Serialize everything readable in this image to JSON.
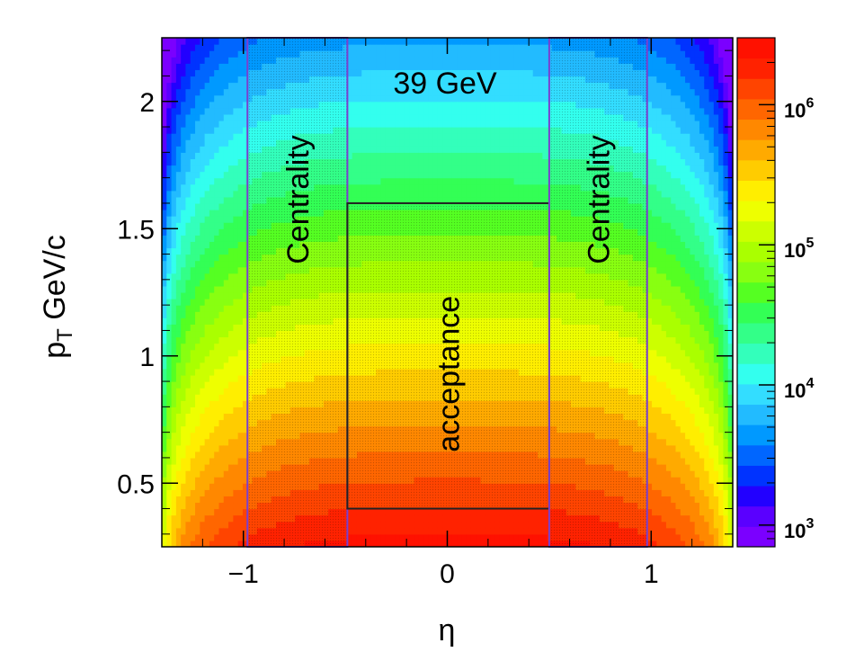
{
  "chart_data": {
    "type": "heatmap",
    "annotation": "39 GeV",
    "xlabel": "η",
    "ylabel_main": "p",
    "ylabel_sub": "T",
    "ylabel_unit": " GeV/c",
    "xlim": [
      -1.4,
      1.4
    ],
    "ylim": [
      0.25,
      2.25
    ],
    "x_ticks": [
      {
        "value": -1,
        "label": "−1"
      },
      {
        "value": 0,
        "label": "0"
      },
      {
        "value": 1,
        "label": "1"
      }
    ],
    "y_ticks": [
      {
        "value": 0.5,
        "label": "0.5"
      },
      {
        "value": 1,
        "label": "1"
      },
      {
        "value": 1.5,
        "label": "1.5"
      },
      {
        "value": 2,
        "label": "2"
      }
    ],
    "z_scale": "log",
    "z_range": [
      700,
      3000000
    ],
    "z_ticks": [
      {
        "value": 1000,
        "label": "10",
        "exp": "3"
      },
      {
        "value": 10000,
        "label": "10",
        "exp": "4"
      },
      {
        "value": 100000,
        "label": "10",
        "exp": "5"
      },
      {
        "value": 1000000,
        "label": "10",
        "exp": "6"
      }
    ],
    "z_model": {
      "peak": 2500000,
      "pt_scale": 0.32,
      "pt_min": 0.25,
      "eta_edge": 1.42,
      "eta_edge_power": 3.2
    },
    "regions": [
      {
        "name": "centrality-left",
        "label": "Centrality",
        "x": [
          -0.98,
          -0.49
        ],
        "y": [
          0.25,
          2.25
        ],
        "border": "#7a3fd0"
      },
      {
        "name": "acceptance",
        "label": "acceptance",
        "x": [
          -0.49,
          0.5
        ],
        "y": [
          0.4,
          1.6
        ],
        "border": "#222222"
      },
      {
        "name": "centrality-right",
        "label": "Centrality",
        "x": [
          0.5,
          0.98
        ],
        "y": [
          0.25,
          2.25
        ],
        "border": "#7a3fd0"
      }
    ],
    "palette": [
      "#7b00ff",
      "#5a00ff",
      "#2200ff",
      "#0033ff",
      "#0066ff",
      "#0099ff",
      "#22bbff",
      "#33ddff",
      "#33ffee",
      "#33ffbb",
      "#33ff88",
      "#33ff55",
      "#55ff22",
      "#88ff11",
      "#aaff00",
      "#ccff00",
      "#eeff00",
      "#ffee00",
      "#ffcc00",
      "#ffaa00",
      "#ff8800",
      "#ff6600",
      "#ff4400",
      "#ff2200",
      "#ff1100"
    ]
  }
}
